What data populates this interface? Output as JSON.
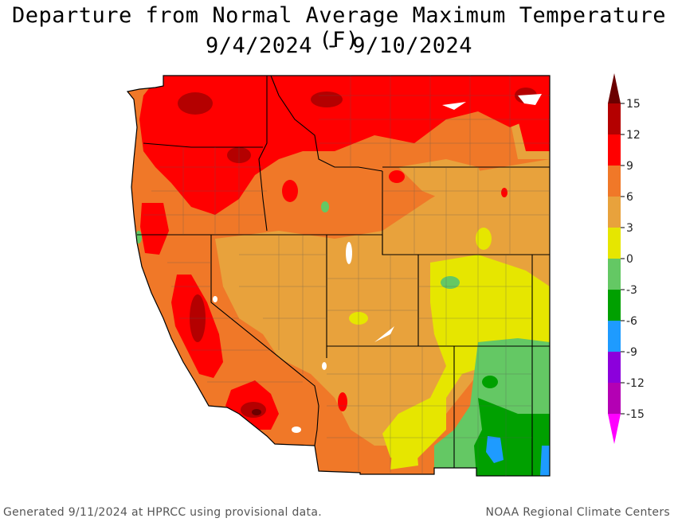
{
  "title_line1": "Departure from Normal Average Maximum Temperature (F)",
  "title_line2": "9/4/2024 - 9/10/2024",
  "legend": {
    "ticks": [
      "15",
      "12",
      "9",
      "6",
      "3",
      "0",
      "-3",
      "-6",
      "-9",
      "-12",
      "-15"
    ],
    "bands": [
      {
        "range": "above 15",
        "color": "#6b0000"
      },
      {
        "range": "12 to 15",
        "color": "#b40000"
      },
      {
        "range": "9 to 12",
        "color": "#ff0000"
      },
      {
        "range": "6 to 9",
        "color": "#f07828"
      },
      {
        "range": "3 to 6",
        "color": "#e8a23c"
      },
      {
        "range": "0 to 3",
        "color": "#e6e600"
      },
      {
        "range": "-3 to 0",
        "color": "#64c864"
      },
      {
        "range": "-6 to -3",
        "color": "#00a000"
      },
      {
        "range": "-9 to -6",
        "color": "#1e9bff"
      },
      {
        "range": "-12 to -9",
        "color": "#8c00dc"
      },
      {
        "range": "-15 to -12",
        "color": "#b400b4"
      },
      {
        "range": "below -15",
        "color": "#ff00ff"
      }
    ]
  },
  "footer_left": "Generated 9/11/2024 at HPRCC using provisional data.",
  "footer_right": "NOAA Regional Climate Centers"
}
